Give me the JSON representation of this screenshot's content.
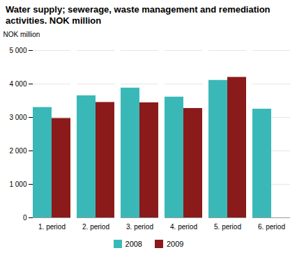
{
  "chart_data": {
    "type": "bar",
    "title": "Water supply; sewerage, waste management and remediation activities. NOK million",
    "ylabel": "NOK million",
    "categories": [
      "1. period",
      "2. period",
      "3. period",
      "4. period",
      "5. period",
      "6. period"
    ],
    "series": [
      {
        "name": "2008",
        "color": "#3ab8b8",
        "values": [
          3300,
          3650,
          3880,
          3610,
          4110,
          3250
        ]
      },
      {
        "name": "2009",
        "color": "#8b1a1a",
        "values": [
          2970,
          3450,
          3440,
          3270,
          4200,
          null
        ]
      }
    ],
    "ylim": [
      0,
      5000
    ],
    "yticks": [
      0,
      {
        "value": 1000,
        "label": "1 000"
      },
      {
        "value": 2000,
        "label": "2 000"
      },
      {
        "value": 3000,
        "label": "3 000"
      },
      {
        "value": 4000,
        "label": "4 000"
      },
      {
        "value": 5000,
        "label": "5 000"
      }
    ],
    "grid": true,
    "legend": "bottom"
  }
}
